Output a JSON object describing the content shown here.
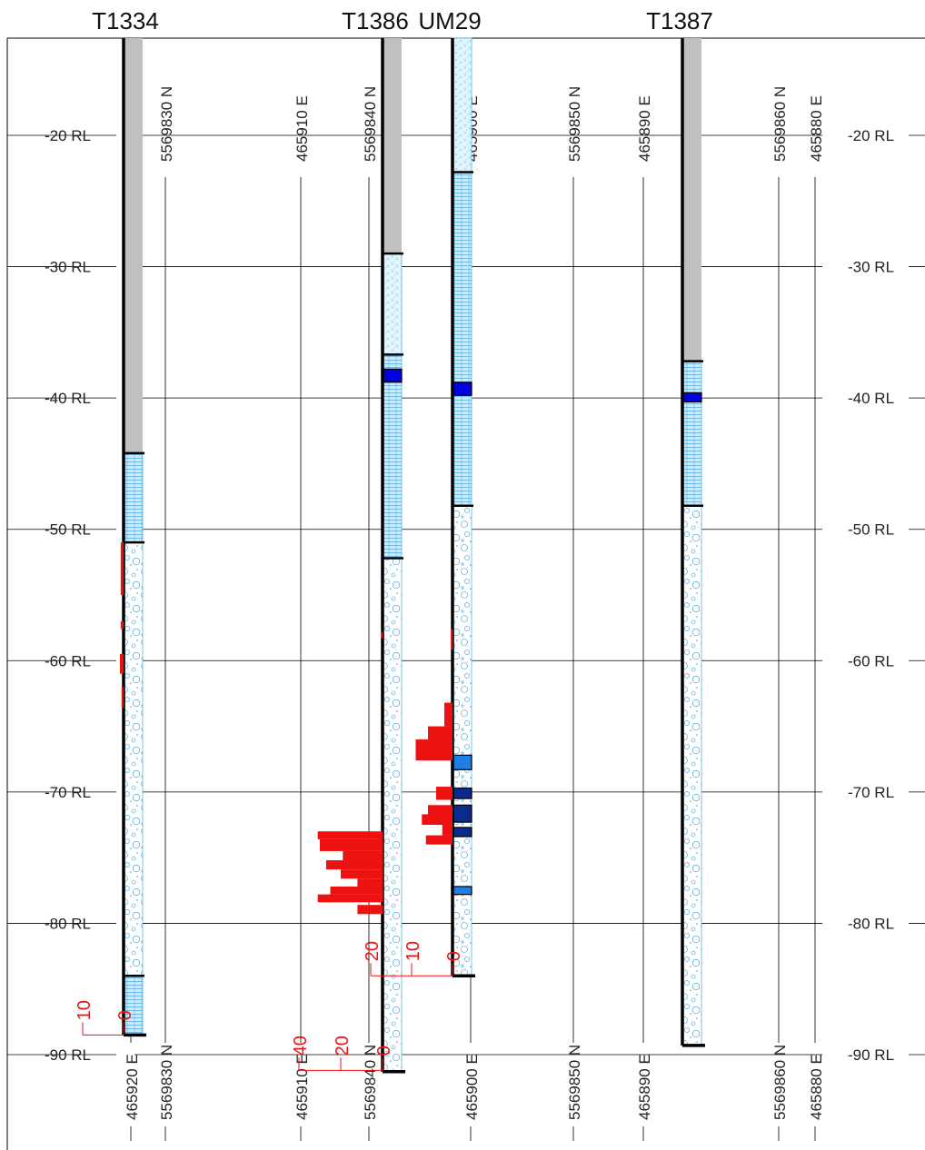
{
  "title": "",
  "holes": [
    {
      "name": "T1334",
      "label_x": 138,
      "collar_rl": -10,
      "eoh_rl": -88.5,
      "intervals": [
        {
          "from": -10,
          "to": -44.2,
          "lith": "cover"
        },
        {
          "from": -44.2,
          "to": -51,
          "lith": "bedded"
        },
        {
          "from": -51,
          "to": -84,
          "lith": "conglomerate"
        },
        {
          "from": -84,
          "to": -88.5,
          "lith": "bedded"
        }
      ],
      "seams": [],
      "assays": [
        {
          "from": -51,
          "to": -55,
          "v": 0.7
        },
        {
          "from": -57,
          "to": -57.6,
          "v": 0.7
        },
        {
          "from": -59.5,
          "to": -61,
          "v": 0.9
        },
        {
          "from": -62,
          "to": -63.6,
          "v": 0.5
        }
      ],
      "scale": {
        "max": 10,
        "ticks": [
          "10",
          "0"
        ],
        "rl": -88.5,
        "side": "left"
      }
    },
    {
      "name": "T1386",
      "label_x": 413,
      "collar_rl": -10,
      "eoh_rl": -91.3,
      "intervals": [
        {
          "from": -10,
          "to": -29,
          "lith": "cover"
        },
        {
          "from": -29,
          "to": -36.7,
          "lith": "sand"
        },
        {
          "from": -36.7,
          "to": -52.2,
          "lith": "bedded"
        },
        {
          "from": -52.2,
          "to": -91.3,
          "lith": "conglomerate"
        }
      ],
      "seams": [
        {
          "from": -37.8,
          "to": -38.8,
          "color": "#0000e0"
        }
      ],
      "assays": [
        {
          "from": -57.8,
          "to": -58.3,
          "v": 0.3
        },
        {
          "from": -73,
          "to": -73.6,
          "v": 31
        },
        {
          "from": -73.6,
          "to": -74.5,
          "v": 30
        },
        {
          "from": -74.5,
          "to": -75.2,
          "v": 19
        },
        {
          "from": -75.2,
          "to": -75.9,
          "v": 27
        },
        {
          "from": -75.9,
          "to": -76.6,
          "v": 20
        },
        {
          "from": -76.6,
          "to": -77.2,
          "v": 12
        },
        {
          "from": -77.2,
          "to": -77.8,
          "v": 25
        },
        {
          "from": -77.8,
          "to": -78.4,
          "v": 31
        },
        {
          "from": -78.6,
          "to": -79.3,
          "v": 12
        }
      ],
      "scale": {
        "max": 40,
        "ticks": [
          "40",
          "20",
          "0"
        ],
        "rl": -91.2,
        "side": "left"
      }
    },
    {
      "name": "UM29",
      "label_x": 495,
      "collar_rl": -10,
      "eoh_rl": -84,
      "intervals": [
        {
          "from": -10,
          "to": -22.8,
          "lith": "sand"
        },
        {
          "from": -22.8,
          "to": -48.2,
          "lith": "bedded"
        },
        {
          "from": -48.2,
          "to": -84,
          "lith": "conglomerate"
        }
      ],
      "seams": [
        {
          "from": -38.8,
          "to": -39.8,
          "color": "#0000e0"
        },
        {
          "from": -67.2,
          "to": -68.3,
          "color": "#1e7fe6"
        },
        {
          "from": -69.7,
          "to": -70.5,
          "color": "#0a2a8c"
        },
        {
          "from": -71,
          "to": -72.3,
          "color": "#0a2a8c"
        },
        {
          "from": -72.7,
          "to": -73.4,
          "color": "#0a2a8c"
        },
        {
          "from": -77.2,
          "to": -77.8,
          "color": "#1e7fe6"
        }
      ],
      "assays": [
        {
          "from": -57.6,
          "to": -59.2,
          "v": 0.3
        },
        {
          "from": -63.2,
          "to": -65,
          "v": 2
        },
        {
          "from": -65,
          "to": -66,
          "v": 6
        },
        {
          "from": -66,
          "to": -67.6,
          "v": 9
        },
        {
          "from": -69.6,
          "to": -70.6,
          "v": 4
        },
        {
          "from": -71,
          "to": -72,
          "v": 6
        },
        {
          "from": -71.7,
          "to": -72.5,
          "v": 7.5
        },
        {
          "from": -72.5,
          "to": -73.3,
          "v": 2.5
        },
        {
          "from": -73.3,
          "to": -74,
          "v": 6.5
        }
      ],
      "scale": {
        "max": 20,
        "ticks": [
          "20",
          "10",
          "0"
        ],
        "rl": -84,
        "side": "left"
      }
    },
    {
      "name": "T1387",
      "label_x": 748,
      "collar_rl": -10,
      "eoh_rl": -89.3,
      "intervals": [
        {
          "from": -10,
          "to": -37.2,
          "lith": "cover"
        },
        {
          "from": -37.2,
          "to": -48.2,
          "lith": "bedded"
        },
        {
          "from": -48.2,
          "to": -89.3,
          "lith": "conglomerate"
        }
      ],
      "seams": [
        {
          "from": -39.6,
          "to": -40.3,
          "color": "#0000e0"
        }
      ],
      "assays": [],
      "scale": null
    }
  ],
  "rl_labels": [
    "-20 RL",
    "-30 RL",
    "-40 RL",
    "-50 RL",
    "-60 RL",
    "-70 RL",
    "-80 RL",
    "-90 RL"
  ],
  "rl_values": [
    -20,
    -30,
    -40,
    -50,
    -60,
    -70,
    -80,
    -90
  ],
  "coord_lines": [
    {
      "label": "465920 E",
      "top": false
    },
    {
      "label": "5569830 N",
      "top": true
    },
    {
      "label": "465910 E",
      "top": true
    },
    {
      "label": "5569840 N",
      "top": true
    },
    {
      "label": "465900 E",
      "top": true
    },
    {
      "label": "5569850 N",
      "top": true
    },
    {
      "label": "465890 E",
      "top": true
    },
    {
      "label": "5569860 N",
      "top": true
    },
    {
      "label": "465880 E",
      "top": true
    }
  ],
  "colors": {
    "cover": "#c0c0c0",
    "bedded": "#bfe3f2",
    "conglomerate": "#e8f6fc",
    "sand": "#d6f0fb",
    "assay": "#ee1111",
    "outline": "#5ab4e6",
    "trace": "#000000"
  }
}
